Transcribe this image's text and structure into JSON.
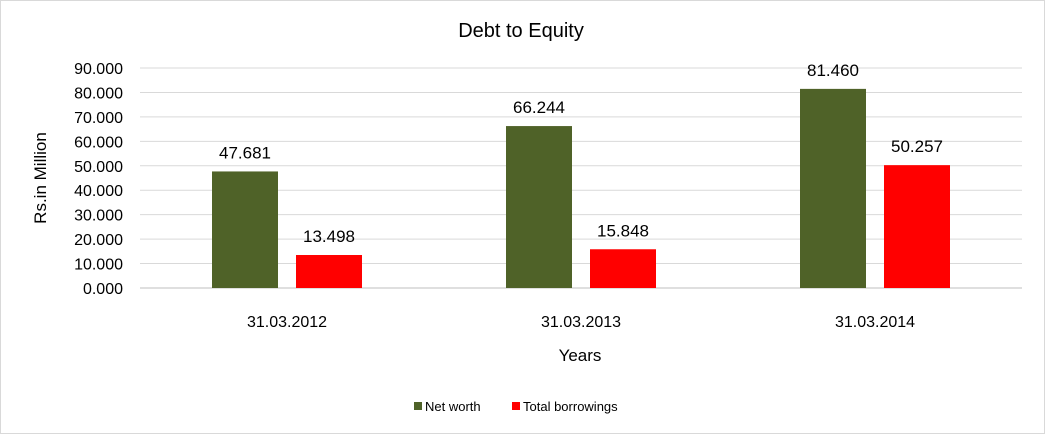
{
  "chart_data": {
    "type": "bar",
    "title": "Debt to Equity",
    "xlabel": "Years",
    "ylabel": "Rs.in Million",
    "categories": [
      "31.03.2012",
      "31.03.2013",
      "31.03.2014"
    ],
    "series": [
      {
        "name": "Net worth",
        "color": "#4f6228",
        "values": [
          47.681,
          66.244,
          81.46
        ]
      },
      {
        "name": "Total borrowings",
        "color": "#ff0000",
        "values": [
          13.498,
          15.848,
          50.257
        ]
      }
    ],
    "ylim": [
      0,
      90
    ],
    "yticks": [
      "0.000",
      "10.000",
      "20.000",
      "30.000",
      "40.000",
      "50.000",
      "60.000",
      "70.000",
      "80.000",
      "90.000"
    ],
    "data_labels": [
      [
        "47.681",
        "66.244",
        "81.460"
      ],
      [
        "13.498",
        "15.848",
        "50.257"
      ]
    ],
    "grid": true,
    "legend_position": "bottom"
  }
}
